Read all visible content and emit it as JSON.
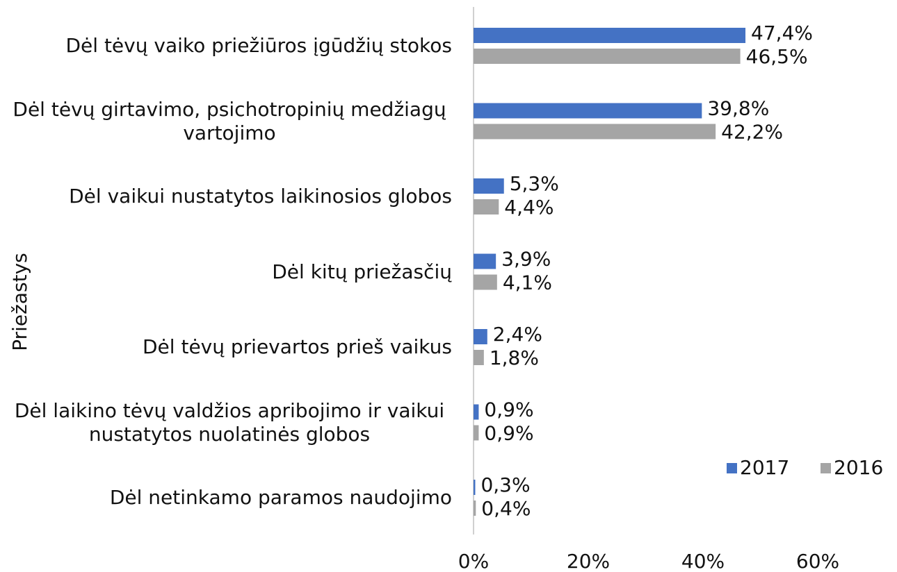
{
  "chart_data": {
    "type": "barh",
    "ylabel": "Priežastys",
    "categories": [
      "Dėl tėvų vaiko priežiūros įgūdžių stokos",
      "Dėl tėvų girtavimo, psichotropinių medžiagų vartojimo",
      "Dėl vaikui nustatytos laikinosios globos",
      "Dėl kitų priežasčių",
      "Dėl tėvų prievartos prieš vaikus",
      "Dėl laikino tėvų valdžios apribojimo ir vaikui nustatytos nuolatinės globos",
      "Dėl netinkamo paramos naudojimo"
    ],
    "series": [
      {
        "name": "2017",
        "color": "#4472c4",
        "values": [
          47.4,
          39.8,
          5.3,
          3.9,
          2.4,
          0.9,
          0.3
        ],
        "value_labels": [
          "47,4%",
          "39,8%",
          "5,3%",
          "3,9%",
          "2,4%",
          "0,9%",
          "0,3%"
        ]
      },
      {
        "name": "2016",
        "color": "#a5a5a5",
        "values": [
          46.5,
          42.2,
          4.4,
          4.1,
          1.8,
          0.9,
          0.4
        ],
        "value_labels": [
          "46,5%",
          "42,2%",
          "4,4%",
          "4,1%",
          "1,8%",
          "0,9%",
          "0,4%"
        ]
      }
    ],
    "xlim": [
      0,
      60
    ],
    "xticks": [
      {
        "value": 0,
        "label": "0%"
      },
      {
        "value": 20,
        "label": "20%"
      },
      {
        "value": 40,
        "label": "40%"
      },
      {
        "value": 60,
        "label": "60%"
      }
    ],
    "legend": "bottom-right"
  }
}
